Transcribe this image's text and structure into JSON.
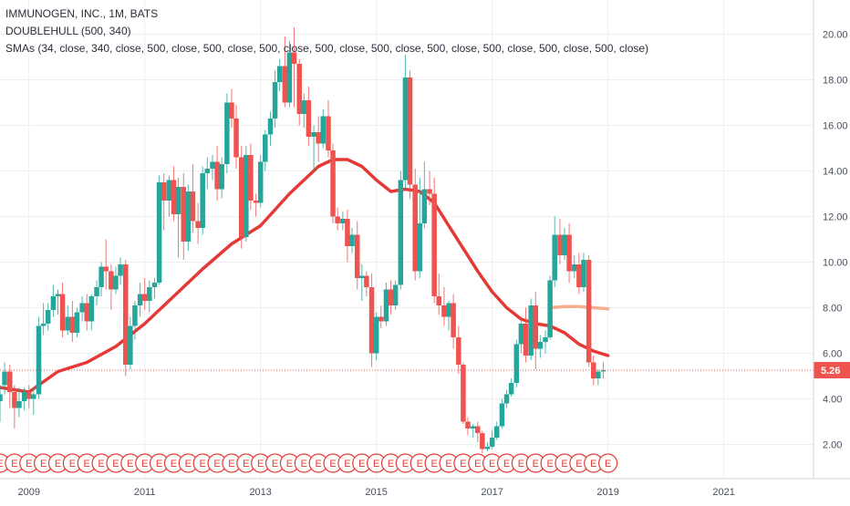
{
  "legend": {
    "symbol_line": "IMMUNOGEN, INC., 1M, BATS",
    "indicator_1": "DOUBLEHULL (500, 340)",
    "indicator_2": "SMAs (34, close, 340, close, 500, close, 500, close, 500, close, 500, close, 500, close, 500, close, 500, close, 500, close, 500, close)"
  },
  "colors": {
    "up": "#26a69a",
    "down": "#ef5350",
    "sma": "#e53935",
    "hull": "#f4a582",
    "last_price": "#ef5350",
    "grid": "#eceff2",
    "axis_text": "#4a4f5c"
  },
  "chart_data": {
    "type": "candlestick",
    "interval": "1M",
    "x_ticks": [
      "2009",
      "2011",
      "2013",
      "2015",
      "2017",
      "2019",
      "2021"
    ],
    "x_range": [
      2008.5,
      2022.55
    ],
    "y_ticks": [
      "20.00",
      "18.00",
      "16.00",
      "14.00",
      "12.00",
      "10.00",
      "8.00",
      "6.00",
      "4.00",
      "2.00"
    ],
    "y_range": [
      0.5,
      21.5
    ],
    "last_price": 5.26,
    "last_price_label": "5.26",
    "grid": true,
    "candles": [
      [
        2008.5,
        3.9,
        4.6,
        4.2,
        3.0
      ],
      [
        2008.58,
        4.6,
        5.6,
        5.2,
        4.2
      ],
      [
        2008.67,
        5.2,
        5.5,
        4.3,
        3.6
      ],
      [
        2008.75,
        4.3,
        4.6,
        3.6,
        2.7
      ],
      [
        2008.83,
        3.6,
        4.5,
        3.9,
        3.2
      ],
      [
        2008.92,
        3.9,
        4.5,
        4.3,
        3.5
      ],
      [
        2009.0,
        4.3,
        4.6,
        4.0,
        3.6
      ],
      [
        2009.08,
        4.0,
        4.5,
        4.2,
        3.3
      ],
      [
        2009.17,
        4.2,
        7.6,
        7.2,
        4.0
      ],
      [
        2009.25,
        7.2,
        8.2,
        7.3,
        6.8
      ],
      [
        2009.33,
        7.3,
        8.2,
        7.9,
        7.0
      ],
      [
        2009.42,
        7.9,
        9.0,
        8.5,
        7.6
      ],
      [
        2009.5,
        8.5,
        8.8,
        8.6,
        7.7
      ],
      [
        2009.58,
        8.6,
        9.1,
        7.0,
        6.7
      ],
      [
        2009.67,
        7.0,
        8.1,
        7.6,
        6.8
      ],
      [
        2009.75,
        7.6,
        8.3,
        6.9,
        6.5
      ],
      [
        2009.83,
        6.9,
        8.0,
        7.8,
        6.7
      ],
      [
        2009.92,
        7.8,
        8.5,
        8.2,
        7.4
      ],
      [
        2010.0,
        8.2,
        8.6,
        7.4,
        7.0
      ],
      [
        2010.08,
        7.4,
        8.6,
        8.5,
        7.0
      ],
      [
        2010.17,
        8.5,
        9.2,
        8.9,
        8.1
      ],
      [
        2010.25,
        8.9,
        10.0,
        9.8,
        8.5
      ],
      [
        2010.33,
        9.8,
        11.0,
        9.6,
        8.8
      ],
      [
        2010.42,
        9.6,
        9.9,
        8.8,
        7.9
      ],
      [
        2010.5,
        8.8,
        9.8,
        9.4,
        8.6
      ],
      [
        2010.58,
        9.4,
        10.2,
        9.9,
        9.0
      ],
      [
        2010.67,
        9.9,
        10.1,
        5.5,
        5.0
      ],
      [
        2010.75,
        5.5,
        7.6,
        7.2,
        5.3
      ],
      [
        2010.83,
        7.2,
        8.3,
        8.1,
        6.6
      ],
      [
        2010.92,
        8.1,
        9.1,
        8.6,
        7.6
      ],
      [
        2011.0,
        8.6,
        9.3,
        8.3,
        7.9
      ],
      [
        2011.08,
        8.3,
        9.2,
        8.9,
        7.8
      ],
      [
        2011.17,
        8.9,
        9.3,
        9.1,
        8.4
      ],
      [
        2011.25,
        9.1,
        13.8,
        13.5,
        9.0
      ],
      [
        2011.33,
        13.5,
        13.9,
        12.7,
        11.4
      ],
      [
        2011.42,
        12.7,
        13.8,
        13.6,
        12.0
      ],
      [
        2011.5,
        13.6,
        14.2,
        12.1,
        11.8
      ],
      [
        2011.58,
        12.1,
        13.7,
        13.3,
        10.2
      ],
      [
        2011.67,
        13.3,
        13.9,
        10.9,
        10.1
      ],
      [
        2011.75,
        10.9,
        13.4,
        13.1,
        10.5
      ],
      [
        2011.83,
        13.1,
        14.3,
        11.8,
        11.3
      ],
      [
        2011.92,
        11.8,
        12.6,
        11.5,
        10.8
      ],
      [
        2012.0,
        11.5,
        14.2,
        13.9,
        11.2
      ],
      [
        2012.08,
        13.9,
        14.6,
        14.1,
        13.2
      ],
      [
        2012.17,
        14.1,
        14.7,
        14.4,
        13.6
      ],
      [
        2012.25,
        14.4,
        15.1,
        13.2,
        12.7
      ],
      [
        2012.33,
        13.2,
        14.6,
        14.3,
        12.8
      ],
      [
        2012.42,
        14.3,
        17.4,
        17.0,
        13.9
      ],
      [
        2012.5,
        17.0,
        17.6,
        16.3,
        15.9
      ],
      [
        2012.58,
        16.3,
        16.9,
        14.6,
        14.1
      ],
      [
        2012.67,
        14.6,
        15.1,
        11.1,
        10.6
      ],
      [
        2012.75,
        11.1,
        15.1,
        14.7,
        10.9
      ],
      [
        2012.83,
        14.7,
        15.2,
        12.7,
        12.3
      ],
      [
        2012.92,
        12.7,
        13.0,
        12.6,
        12.0
      ],
      [
        2013.0,
        12.6,
        14.7,
        14.4,
        12.4
      ],
      [
        2013.08,
        14.4,
        15.8,
        15.6,
        14.0
      ],
      [
        2013.17,
        15.6,
        16.6,
        16.3,
        15.1
      ],
      [
        2013.25,
        16.3,
        18.4,
        17.9,
        15.9
      ],
      [
        2013.33,
        17.9,
        18.9,
        18.6,
        17.5
      ],
      [
        2013.42,
        18.6,
        19.9,
        17.0,
        16.8
      ],
      [
        2013.5,
        17.0,
        19.7,
        19.2,
        16.8
      ],
      [
        2013.58,
        19.2,
        20.3,
        18.7,
        16.8
      ],
      [
        2013.67,
        18.7,
        18.9,
        16.5,
        16.0
      ],
      [
        2013.75,
        16.5,
        17.4,
        17.1,
        15.9
      ],
      [
        2013.83,
        17.1,
        17.7,
        15.5,
        15.1
      ],
      [
        2013.92,
        15.5,
        16.0,
        15.7,
        14.0
      ],
      [
        2014.0,
        15.7,
        16.4,
        15.2,
        14.4
      ],
      [
        2014.08,
        15.2,
        16.7,
        16.4,
        15.0
      ],
      [
        2014.17,
        16.4,
        17.1,
        14.9,
        14.6
      ],
      [
        2014.25,
        14.9,
        15.2,
        12.0,
        11.7
      ],
      [
        2014.33,
        12.0,
        12.4,
        11.7,
        11.4
      ],
      [
        2014.42,
        11.7,
        12.2,
        11.9,
        11.4
      ],
      [
        2014.5,
        11.9,
        12.3,
        10.7,
        10.0
      ],
      [
        2014.58,
        10.7,
        11.5,
        11.2,
        10.4
      ],
      [
        2014.67,
        11.2,
        11.8,
        9.3,
        8.8
      ],
      [
        2014.75,
        9.3,
        9.9,
        9.4,
        8.3
      ],
      [
        2014.83,
        9.4,
        9.6,
        8.9,
        8.5
      ],
      [
        2014.92,
        8.9,
        9.5,
        6.0,
        5.4
      ],
      [
        2015.0,
        6.0,
        7.8,
        7.6,
        5.7
      ],
      [
        2015.08,
        7.6,
        8.1,
        7.4,
        7.1
      ],
      [
        2015.17,
        7.4,
        9.1,
        8.8,
        7.2
      ],
      [
        2015.25,
        8.8,
        9.2,
        8.1,
        7.7
      ],
      [
        2015.33,
        8.1,
        9.2,
        9.0,
        7.9
      ],
      [
        2015.42,
        9.0,
        14.0,
        13.6,
        8.8
      ],
      [
        2015.5,
        13.6,
        19.1,
        18.1,
        13.2
      ],
      [
        2015.58,
        18.1,
        18.4,
        13.4,
        12.8
      ],
      [
        2015.67,
        13.4,
        14.1,
        9.6,
        9.2
      ],
      [
        2015.75,
        9.6,
        13.7,
        11.7,
        9.3
      ],
      [
        2015.83,
        11.7,
        14.4,
        13.2,
        11.5
      ],
      [
        2015.92,
        13.2,
        14.0,
        13.0,
        12.5
      ],
      [
        2016.0,
        13.0,
        13.7,
        8.5,
        8.2
      ],
      [
        2016.08,
        8.5,
        9.5,
        8.1,
        7.7
      ],
      [
        2016.17,
        8.1,
        8.9,
        7.6,
        7.2
      ],
      [
        2016.25,
        7.6,
        8.3,
        8.2,
        7.0
      ],
      [
        2016.33,
        8.2,
        8.6,
        6.7,
        6.2
      ],
      [
        2016.42,
        6.7,
        7.2,
        5.5,
        5.1
      ],
      [
        2016.5,
        5.5,
        5.6,
        3.0,
        2.9
      ],
      [
        2016.58,
        3.0,
        3.2,
        2.7,
        2.4
      ],
      [
        2016.67,
        2.7,
        2.9,
        2.8,
        2.3
      ],
      [
        2016.75,
        2.8,
        3.0,
        2.5,
        2.1
      ],
      [
        2016.83,
        2.5,
        2.6,
        1.8,
        1.6
      ],
      [
        2016.92,
        1.8,
        2.1,
        1.9,
        1.7
      ],
      [
        2017.0,
        1.9,
        2.6,
        2.3,
        1.8
      ],
      [
        2017.08,
        2.3,
        3.0,
        2.8,
        2.2
      ],
      [
        2017.17,
        2.8,
        4.0,
        3.8,
        2.7
      ],
      [
        2017.25,
        3.8,
        4.4,
        4.2,
        3.6
      ],
      [
        2017.33,
        4.2,
        4.9,
        4.7,
        4.1
      ],
      [
        2017.42,
        4.7,
        6.6,
        6.4,
        4.5
      ],
      [
        2017.5,
        6.4,
        7.5,
        7.3,
        6.0
      ],
      [
        2017.58,
        7.3,
        8.0,
        5.9,
        5.6
      ],
      [
        2017.67,
        5.9,
        8.4,
        8.1,
        5.7
      ],
      [
        2017.75,
        8.1,
        8.7,
        6.2,
        5.3
      ],
      [
        2017.83,
        6.2,
        6.8,
        6.5,
        5.8
      ],
      [
        2017.92,
        6.5,
        7.0,
        6.7,
        6.0
      ],
      [
        2018.0,
        6.7,
        9.4,
        9.2,
        6.6
      ],
      [
        2018.08,
        9.2,
        12.0,
        11.2,
        8.9
      ],
      [
        2018.17,
        11.2,
        11.9,
        10.3,
        9.9
      ],
      [
        2018.25,
        10.3,
        11.5,
        11.2,
        10.1
      ],
      [
        2018.33,
        11.2,
        11.7,
        9.6,
        9.1
      ],
      [
        2018.42,
        9.6,
        10.3,
        9.9,
        9.3
      ],
      [
        2018.5,
        9.9,
        10.4,
        8.9,
        8.6
      ],
      [
        2018.58,
        8.9,
        10.4,
        10.1,
        8.7
      ],
      [
        2018.67,
        10.1,
        10.3,
        5.6,
        5.4
      ],
      [
        2018.75,
        5.6,
        5.9,
        4.9,
        4.6
      ],
      [
        2018.83,
        4.9,
        5.3,
        5.2,
        4.6
      ],
      [
        2018.92,
        5.2,
        5.6,
        5.26,
        4.9
      ]
    ],
    "sma_line": [
      [
        2008.5,
        4.5
      ],
      [
        2009.0,
        4.3
      ],
      [
        2009.5,
        5.2
      ],
      [
        2010.0,
        5.6
      ],
      [
        2010.5,
        6.3
      ],
      [
        2011.0,
        7.3
      ],
      [
        2011.5,
        8.5
      ],
      [
        2012.0,
        9.7
      ],
      [
        2012.5,
        10.8
      ],
      [
        2013.0,
        11.6
      ],
      [
        2013.5,
        13.0
      ],
      [
        2014.0,
        14.2
      ],
      [
        2014.25,
        14.5
      ],
      [
        2014.5,
        14.5
      ],
      [
        2014.75,
        14.2
      ],
      [
        2015.0,
        13.6
      ],
      [
        2015.25,
        13.1
      ],
      [
        2015.5,
        13.2
      ],
      [
        2015.75,
        13.1
      ],
      [
        2016.0,
        12.6
      ],
      [
        2016.25,
        11.6
      ],
      [
        2016.5,
        10.6
      ],
      [
        2016.75,
        9.6
      ],
      [
        2017.0,
        8.7
      ],
      [
        2017.25,
        8.0
      ],
      [
        2017.5,
        7.5
      ],
      [
        2017.75,
        7.3
      ],
      [
        2018.0,
        7.2
      ],
      [
        2018.25,
        6.9
      ],
      [
        2018.5,
        6.4
      ],
      [
        2018.75,
        6.1
      ],
      [
        2019.0,
        5.9
      ]
    ],
    "hull_line": [
      [
        2018.0,
        8.0
      ],
      [
        2018.25,
        8.05
      ],
      [
        2018.5,
        8.05
      ],
      [
        2018.75,
        8.0
      ],
      [
        2019.0,
        7.95
      ]
    ],
    "earnings_markers": {
      "label": "E",
      "positions": [
        2008.5,
        2008.75,
        2009.0,
        2009.25,
        2009.5,
        2009.75,
        2010.0,
        2010.25,
        2010.5,
        2010.75,
        2011.0,
        2011.25,
        2011.5,
        2011.75,
        2012.0,
        2012.25,
        2012.5,
        2012.75,
        2013.0,
        2013.25,
        2013.5,
        2013.75,
        2014.0,
        2014.25,
        2014.5,
        2014.75,
        2015.0,
        2015.25,
        2015.5,
        2015.75,
        2016.0,
        2016.25,
        2016.5,
        2016.75,
        2017.0,
        2017.25,
        2017.5,
        2017.75,
        2018.0,
        2018.25,
        2018.5,
        2018.75,
        2019.0
      ]
    }
  }
}
